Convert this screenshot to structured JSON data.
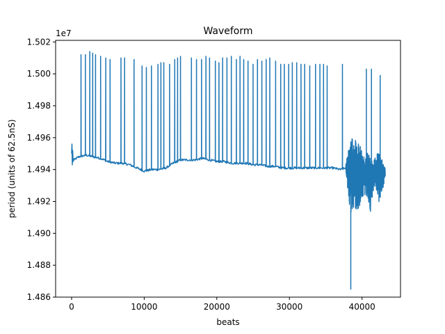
{
  "chart_data": {
    "type": "line",
    "title": "Waveform",
    "xlabel": "beats",
    "ylabel": "period (units of 62.5nS)",
    "offset_label": "1e7",
    "xlim": [
      -2200,
      45300
    ],
    "ylim": [
      14860000,
      15021000
    ],
    "x_ticks": [
      0,
      10000,
      20000,
      30000,
      40000
    ],
    "x_tick_labels": [
      "0",
      "10000",
      "20000",
      "30000",
      "40000"
    ],
    "y_ticks": [
      14860000,
      14880000,
      14900000,
      14920000,
      14940000,
      14960000,
      14980000,
      15000000,
      15020000
    ],
    "y_tick_labels": [
      "1.486",
      "1.488",
      "1.490",
      "1.492",
      "1.494",
      "1.496",
      "1.498",
      "1.500",
      "1.502"
    ],
    "grid": false,
    "color": "#1f77b4",
    "series": [
      {
        "name": "",
        "baseline": [
          [
            0,
            14949000
          ],
          [
            300,
            14946000
          ],
          [
            1000,
            14948000
          ],
          [
            2000,
            14949000
          ],
          [
            3000,
            14948000
          ],
          [
            4000,
            14947000
          ],
          [
            5000,
            14945000
          ],
          [
            6000,
            14944000
          ],
          [
            7000,
            14944000
          ],
          [
            8000,
            14943000
          ],
          [
            9000,
            14941000
          ],
          [
            10000,
            14939000
          ],
          [
            11000,
            14940000
          ],
          [
            12000,
            14940000
          ],
          [
            13000,
            14941000
          ],
          [
            14000,
            14944000
          ],
          [
            15000,
            14946000
          ],
          [
            16000,
            14946000
          ],
          [
            17000,
            14946000
          ],
          [
            18000,
            14947000
          ],
          [
            19000,
            14946000
          ],
          [
            20000,
            14945000
          ],
          [
            21000,
            14945000
          ],
          [
            22000,
            14944000
          ],
          [
            23000,
            14944000
          ],
          [
            24000,
            14944000
          ],
          [
            25000,
            14943000
          ],
          [
            26000,
            14943000
          ],
          [
            27000,
            14942000
          ],
          [
            28000,
            14942000
          ],
          [
            29000,
            14941000
          ],
          [
            30000,
            14941000
          ],
          [
            31000,
            14941000
          ],
          [
            32000,
            14941000
          ],
          [
            33000,
            14941000
          ],
          [
            34000,
            14941000
          ],
          [
            35000,
            14941000
          ],
          [
            36000,
            14941000
          ],
          [
            37000,
            14940000
          ],
          [
            37800,
            14941000
          ]
        ],
        "start_transient": [
          [
            0,
            14950000
          ],
          [
            50,
            14956000
          ],
          [
            100,
            14943000
          ],
          [
            150,
            14952000
          ],
          [
            200,
            14945000
          ]
        ],
        "spikes": [
          [
            1300,
            15012000
          ],
          [
            1900,
            15012000
          ],
          [
            2500,
            15014000
          ],
          [
            2900,
            15013000
          ],
          [
            3300,
            15012000
          ],
          [
            4000,
            15011000
          ],
          [
            4700,
            15010000
          ],
          [
            5300,
            15009000
          ],
          [
            6800,
            15010000
          ],
          [
            7300,
            15010000
          ],
          [
            8600,
            15009000
          ],
          [
            9700,
            15005000
          ],
          [
            10300,
            15004000
          ],
          [
            11000,
            15005000
          ],
          [
            11900,
            15006000
          ],
          [
            12300,
            15007000
          ],
          [
            12700,
            15007000
          ],
          [
            13500,
            15006000
          ],
          [
            14200,
            15009000
          ],
          [
            14600,
            15010000
          ],
          [
            15000,
            15011000
          ],
          [
            16500,
            15010000
          ],
          [
            17200,
            15009000
          ],
          [
            17900,
            15009000
          ],
          [
            18500,
            15011000
          ],
          [
            19000,
            15010000
          ],
          [
            19800,
            15008000
          ],
          [
            20300,
            15007000
          ],
          [
            20800,
            15010000
          ],
          [
            21400,
            15010000
          ],
          [
            22000,
            15011000
          ],
          [
            22700,
            15009000
          ],
          [
            23200,
            15011000
          ],
          [
            23700,
            15009000
          ],
          [
            24300,
            15008000
          ],
          [
            25000,
            15006000
          ],
          [
            25600,
            15009000
          ],
          [
            26200,
            15008000
          ],
          [
            26800,
            15009000
          ],
          [
            27300,
            15010000
          ],
          [
            28100,
            15008000
          ],
          [
            28800,
            15006000
          ],
          [
            29300,
            15006000
          ],
          [
            29900,
            15006000
          ],
          [
            30400,
            15007000
          ],
          [
            31000,
            15007000
          ],
          [
            31600,
            15006000
          ],
          [
            32100,
            15006000
          ],
          [
            32800,
            15005000
          ],
          [
            33600,
            15006000
          ],
          [
            34200,
            15006000
          ],
          [
            34700,
            15006000
          ],
          [
            35200,
            15005000
          ],
          [
            37300,
            15006000
          ],
          [
            40600,
            15003000
          ],
          [
            41300,
            15003000
          ],
          [
            42500,
            14999000
          ]
        ],
        "noisy_region": {
          "x_start": 37800,
          "x_end": 43200,
          "center": 14937000,
          "envelope": [
            [
              37800,
              14944000,
              14938000
            ],
            [
              38200,
              14956000,
              14920000
            ],
            [
              38500,
              14960000,
              14912000
            ],
            [
              38800,
              14963000,
              14914000
            ],
            [
              39100,
              14960000,
              14912000
            ],
            [
              39400,
              14958000,
              14915000
            ],
            [
              39700,
              14956000,
              14917000
            ],
            [
              40000,
              14952000,
              14922000
            ],
            [
              40300,
              14950000,
              14924000
            ],
            [
              40600,
              14950000,
              14924000
            ],
            [
              40900,
              14952000,
              14920000
            ],
            [
              41200,
              14948000,
              14912000
            ],
            [
              41500,
              14946000,
              14926000
            ],
            [
              41800,
              14948000,
              14928000
            ],
            [
              42100,
              14950000,
              14926000
            ],
            [
              42400,
              14950000,
              14918000
            ],
            [
              42700,
              14948000,
              14926000
            ],
            [
              43000,
              14942000,
              14930000
            ],
            [
              43200,
              14941000,
              14934000
            ]
          ],
          "drop": [
            38450,
            14865000
          ]
        }
      }
    ]
  }
}
